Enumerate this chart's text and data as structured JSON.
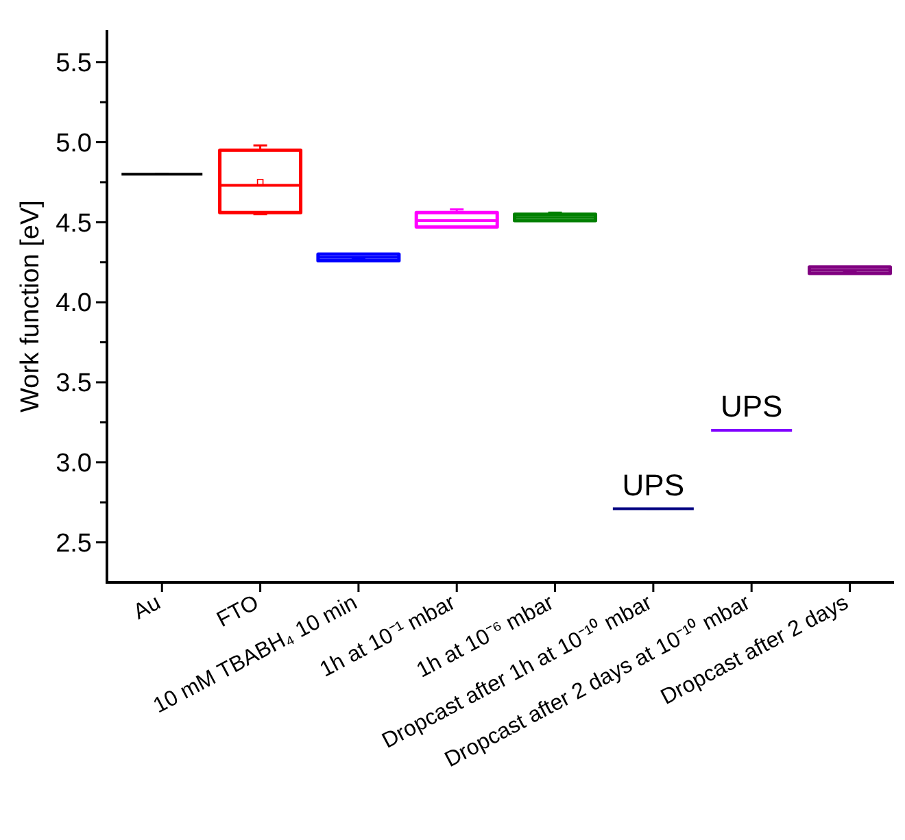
{
  "chart_data": {
    "type": "box",
    "ylabel": "Work function [eV]",
    "categories": [
      "Au",
      "FTO",
      "10 mM TBABH₄ 10 min",
      "1h at 10⁻¹ mbar",
      "1h at 10⁻⁶ mbar",
      "Dropcast after 1h at 10⁻¹⁰ mbar",
      "Dropcast after 2 days at 10⁻¹⁰ mbar",
      "Dropcast after 2 days"
    ],
    "colors": [
      "#000000",
      "#ff0000",
      "#0000ff",
      "#ff00ff",
      "#008000",
      "#000080",
      "#8000ff",
      "#800080"
    ],
    "boxes": [
      {
        "low": 4.8,
        "q1": 4.8,
        "median": 4.8,
        "q3": 4.8,
        "high": 4.8
      },
      {
        "low": 4.55,
        "q1": 4.56,
        "median": 4.73,
        "q3": 4.95,
        "high": 4.98,
        "mean": 4.75
      },
      {
        "low": 4.27,
        "q1": 4.26,
        "median": 4.28,
        "q3": 4.3,
        "high": 4.3
      },
      {
        "low": 4.47,
        "q1": 4.47,
        "median": 4.51,
        "q3": 4.56,
        "high": 4.58
      },
      {
        "low": 4.51,
        "q1": 4.51,
        "median": 4.53,
        "q3": 4.55,
        "high": 4.56
      },
      {
        "low": 2.71,
        "q1": 2.71,
        "median": 2.71,
        "q3": 2.71,
        "high": 2.71
      },
      {
        "low": 3.2,
        "q1": 3.2,
        "median": 3.2,
        "q3": 3.2,
        "high": 3.2
      },
      {
        "low": 4.19,
        "q1": 4.18,
        "median": 4.2,
        "q3": 4.22,
        "high": 4.22
      }
    ],
    "ylim": [
      2.25,
      5.7
    ],
    "yticks": [
      {
        "value": 2.5,
        "label": "2.5"
      },
      {
        "value": 2.75,
        "label": null
      },
      {
        "value": 3.0,
        "label": "3.0"
      },
      {
        "value": 3.25,
        "label": null
      },
      {
        "value": 3.5,
        "label": "3.5"
      },
      {
        "value": 3.75,
        "label": null
      },
      {
        "value": 4.0,
        "label": "4.0"
      },
      {
        "value": 4.25,
        "label": null
      },
      {
        "value": 4.5,
        "label": "4.5"
      },
      {
        "value": 4.75,
        "label": null
      },
      {
        "value": 5.0,
        "label": "5.0"
      },
      {
        "value": 5.25,
        "label": null
      },
      {
        "value": 5.5,
        "label": "5.5"
      }
    ],
    "annotations": [
      {
        "text": "UPS",
        "x": "Dropcast after 1h at 10⁻¹⁰ mbar",
        "y": 2.71
      },
      {
        "text": "UPS",
        "x": "Dropcast after 2 days at 10⁻¹⁰ mbar",
        "y": 3.2
      }
    ],
    "grid": false
  }
}
